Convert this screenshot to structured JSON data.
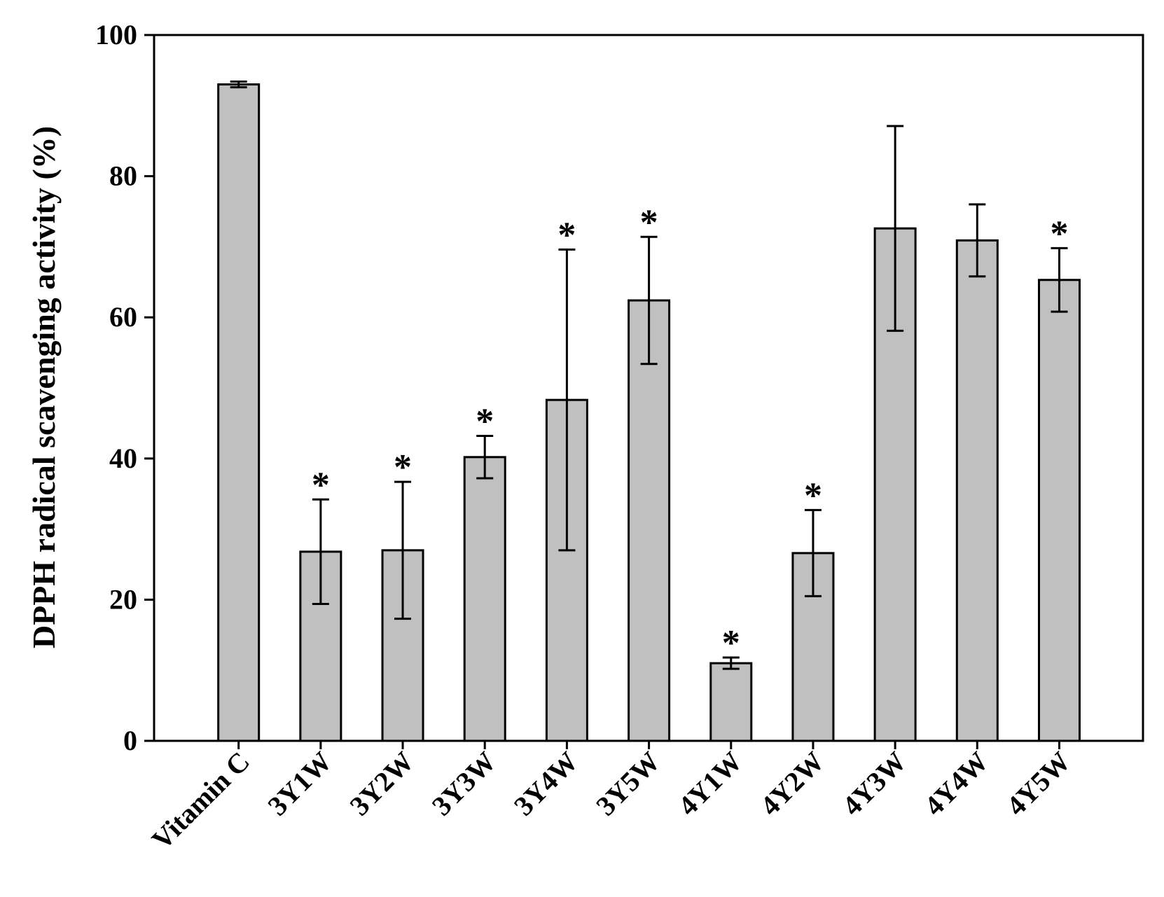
{
  "chart_data": {
    "type": "bar",
    "title": "",
    "xlabel": "",
    "ylabel": "DPPH radical scavenging activity (%)",
    "ylim": [
      0,
      100
    ],
    "yticks": [
      0,
      20,
      40,
      60,
      80,
      100
    ],
    "ytick_labels": [
      "0",
      "20",
      "40",
      "60",
      "80",
      "100"
    ],
    "categories": [
      "Vitamin C",
      "3Y1W",
      "3Y2W",
      "3Y3W",
      "3Y4W",
      "3Y5W",
      "4Y1W",
      "4Y2W",
      "4Y3W",
      "4Y4W",
      "4Y5W"
    ],
    "values": [
      93.0,
      26.8,
      27.0,
      40.2,
      48.3,
      62.4,
      11.0,
      26.6,
      72.6,
      70.9,
      65.3
    ],
    "errors": [
      0.4,
      7.4,
      9.7,
      3.0,
      21.3,
      9.0,
      0.8,
      6.1,
      14.5,
      5.1,
      4.5
    ],
    "significance": [
      "",
      "*",
      "*",
      "*",
      "*",
      "*",
      "*",
      "*",
      "",
      "",
      "*"
    ],
    "bar_color": "#c0c0c0",
    "grid": false,
    "legend": "none"
  }
}
